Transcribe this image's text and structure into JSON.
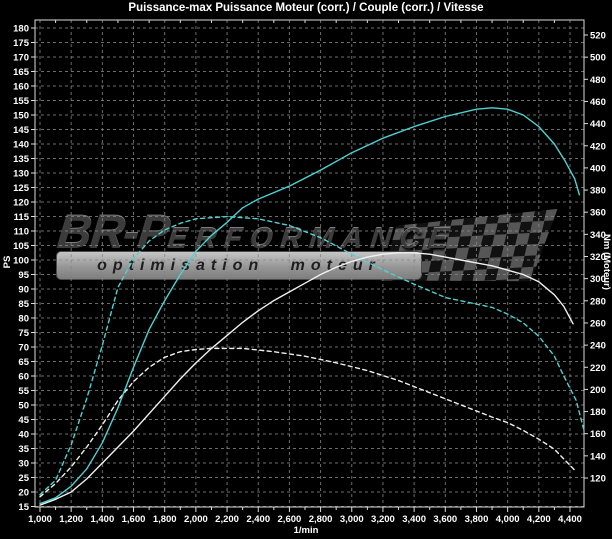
{
  "title": "Puissance-max Puissance Moteur (corr.) / Couple (corr.) / Vitesse",
  "watermark": {
    "brand_main": "BR-P",
    "brand_rest": "ERFORMANCE",
    "tagline": "optimisation moteur"
  },
  "chart_data": {
    "type": "line",
    "title": "Puissance-max Puissance Moteur (corr.) / Couple (corr.) / Vitesse",
    "xlabel": "1/min",
    "grid": "dashed",
    "legend": "none",
    "background": "#000000",
    "colors": {
      "tuned": "#4dd2d2",
      "stock": "#f0f0f0",
      "grid": "#878787",
      "axis": "#dcdcdc",
      "text": "#ffffff"
    },
    "x_axis": {
      "min": 1000,
      "max": 4400,
      "tick_step": 200,
      "tick_labels": [
        "1,000",
        "1,200",
        "1,400",
        "1,600",
        "1,800",
        "2,000",
        "2,200",
        "2,400",
        "2,600",
        "2,800",
        "3,000",
        "3,200",
        "3,400",
        "3,600",
        "3,800",
        "4,000",
        "4,200",
        "4,400"
      ]
    },
    "y_left": {
      "label": "PS",
      "min": 15,
      "max": 180,
      "tick_step": 5,
      "ticks": [
        180,
        175,
        170,
        165,
        160,
        155,
        150,
        145,
        140,
        135,
        130,
        125,
        120,
        115,
        110,
        105,
        100,
        95,
        90,
        85,
        80,
        75,
        70,
        65,
        60,
        55,
        50,
        45,
        40,
        35,
        30,
        25,
        20,
        15
      ]
    },
    "y_right": {
      "label": "Nm (Moteur)",
      "min": 120,
      "max": 520,
      "tick_step": 20,
      "ticks": [
        520,
        500,
        480,
        460,
        440,
        420,
        400,
        380,
        360,
        340,
        320,
        300,
        280,
        260,
        240,
        220,
        200,
        180,
        160,
        140,
        120
      ]
    },
    "series": [
      {
        "name": "torque_stock",
        "unit": "Nm",
        "axis": "right",
        "color": "stock",
        "style": "dashed",
        "points": [
          [
            1000,
            103
          ],
          [
            1100,
            115
          ],
          [
            1200,
            130
          ],
          [
            1300,
            148
          ],
          [
            1400,
            168
          ],
          [
            1500,
            190
          ],
          [
            1600,
            207
          ],
          [
            1700,
            220
          ],
          [
            1800,
            229
          ],
          [
            1900,
            234
          ],
          [
            2000,
            236
          ],
          [
            2100,
            237
          ],
          [
            2300,
            237
          ],
          [
            2500,
            234
          ],
          [
            2700,
            230
          ],
          [
            2900,
            224
          ],
          [
            3100,
            217
          ],
          [
            3300,
            208
          ],
          [
            3500,
            197
          ],
          [
            3700,
            186
          ],
          [
            3900,
            175
          ],
          [
            4000,
            170
          ],
          [
            4100,
            163
          ],
          [
            4200,
            155
          ],
          [
            4300,
            146
          ],
          [
            4430,
            127
          ]
        ]
      },
      {
        "name": "torque_tuned",
        "unit": "Nm",
        "axis": "right",
        "color": "tuned",
        "style": "dashed",
        "points": [
          [
            1000,
            105
          ],
          [
            1100,
            118
          ],
          [
            1200,
            150
          ],
          [
            1300,
            192
          ],
          [
            1400,
            240
          ],
          [
            1500,
            292
          ],
          [
            1600,
            318
          ],
          [
            1700,
            334
          ],
          [
            1800,
            344
          ],
          [
            1900,
            350
          ],
          [
            2000,
            354
          ],
          [
            2200,
            356
          ],
          [
            2400,
            354
          ],
          [
            2600,
            348
          ],
          [
            2800,
            337
          ],
          [
            3000,
            322
          ],
          [
            3200,
            308
          ],
          [
            3400,
            295
          ],
          [
            3600,
            283
          ],
          [
            3800,
            277
          ],
          [
            3900,
            274
          ],
          [
            4000,
            268
          ],
          [
            4100,
            260
          ],
          [
            4200,
            248
          ],
          [
            4300,
            230
          ],
          [
            4350,
            215
          ],
          [
            4440,
            190
          ],
          [
            4490,
            163
          ]
        ]
      },
      {
        "name": "power_stock",
        "unit": "PS",
        "axis": "left",
        "color": "stock",
        "style": "solid",
        "points": [
          [
            1000,
            15.5
          ],
          [
            1100,
            17.5
          ],
          [
            1200,
            20
          ],
          [
            1300,
            24.5
          ],
          [
            1400,
            30
          ],
          [
            1500,
            35.5
          ],
          [
            1600,
            41
          ],
          [
            1700,
            47
          ],
          [
            1800,
            53
          ],
          [
            1900,
            59
          ],
          [
            2000,
            64.5
          ],
          [
            2100,
            69.5
          ],
          [
            2200,
            74
          ],
          [
            2300,
            78.5
          ],
          [
            2400,
            82.5
          ],
          [
            2500,
            86
          ],
          [
            2600,
            89
          ],
          [
            2700,
            92
          ],
          [
            2800,
            95
          ],
          [
            2900,
            97.5
          ],
          [
            3000,
            99.5
          ],
          [
            3100,
            101
          ],
          [
            3200,
            102
          ],
          [
            3300,
            102.5
          ],
          [
            3400,
            102.5
          ],
          [
            3500,
            102
          ],
          [
            3600,
            101
          ],
          [
            3700,
            100
          ],
          [
            3800,
            99
          ],
          [
            3900,
            98
          ],
          [
            4000,
            96.5
          ],
          [
            4100,
            95
          ],
          [
            4200,
            92.5
          ],
          [
            4300,
            88
          ],
          [
            4360,
            84
          ],
          [
            4420,
            78
          ]
        ]
      },
      {
        "name": "power_tuned",
        "unit": "PS",
        "axis": "left",
        "color": "tuned",
        "style": "solid",
        "points": [
          [
            1000,
            16
          ],
          [
            1100,
            18
          ],
          [
            1200,
            22
          ],
          [
            1300,
            28
          ],
          [
            1400,
            37
          ],
          [
            1500,
            49
          ],
          [
            1600,
            63
          ],
          [
            1700,
            76
          ],
          [
            1800,
            86
          ],
          [
            1900,
            95
          ],
          [
            2000,
            103
          ],
          [
            2100,
            108.5
          ],
          [
            2200,
            113
          ],
          [
            2300,
            118
          ],
          [
            2400,
            121
          ],
          [
            2600,
            125.5
          ],
          [
            2800,
            131
          ],
          [
            3000,
            137
          ],
          [
            3200,
            142
          ],
          [
            3400,
            146
          ],
          [
            3600,
            149.5
          ],
          [
            3800,
            152
          ],
          [
            3900,
            152.5
          ],
          [
            4000,
            152
          ],
          [
            4100,
            150
          ],
          [
            4200,
            146
          ],
          [
            4300,
            140
          ],
          [
            4370,
            134
          ],
          [
            4430,
            128
          ],
          [
            4460,
            122.5
          ]
        ]
      }
    ]
  }
}
